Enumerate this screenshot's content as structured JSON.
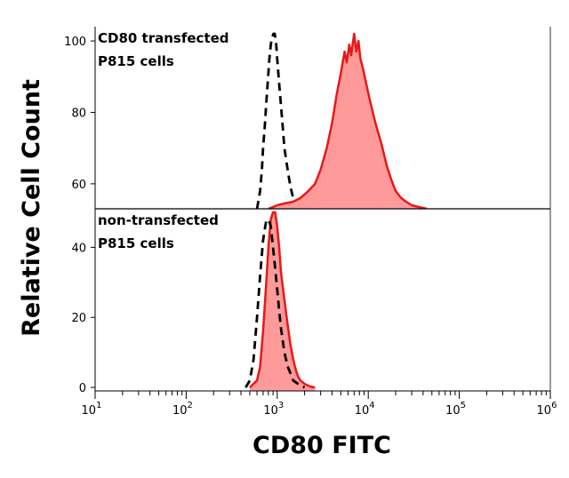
{
  "chart_data": {
    "type": "area",
    "xlabel": "CD80 FITC",
    "ylabel": "Relative Cell Count",
    "xscale": "log",
    "xlim": [
      10,
      1000000
    ],
    "x_ticks": [
      {
        "base": "10",
        "exp": "1",
        "value": 10
      },
      {
        "base": "10",
        "exp": "2",
        "value": 100
      },
      {
        "base": "10",
        "exp": "3",
        "value": 1000
      },
      {
        "base": "10",
        "exp": "4",
        "value": 10000
      },
      {
        "base": "10",
        "exp": "5",
        "value": 100000
      },
      {
        "base": "10",
        "exp": "6",
        "value": 1000000
      }
    ],
    "panels": [
      {
        "label_lines": [
          "CD80 transfected",
          "P815 cells"
        ],
        "ylim": [
          53,
          104
        ],
        "y_ticks": [
          60,
          80,
          100
        ],
        "series": [
          {
            "style": "dashed-black",
            "x": [
              600,
              620,
              650,
              680,
              700,
              730,
              760,
              790,
              820,
              850,
              880,
              910,
              940,
              970,
              1000,
              1050,
              1100,
              1150,
              1200,
              1300,
              1400,
              1500,
              1600,
              1700,
              1800,
              1900,
              2000
            ],
            "y": [
              53,
              55,
              58,
              64,
              70,
              76,
              83,
              89,
              95,
              99,
              101,
              102,
              102,
              100,
              95,
              88,
              82,
              76,
              70,
              64,
              59,
              56,
              55,
              54,
              53.5,
              53.2,
              53
            ]
          },
          {
            "style": "filled-red",
            "x": [
              800,
              1000,
              1200,
              1500,
              1800,
              2200,
              2600,
              3000,
              3500,
              4000,
              4500,
              5000,
              5500,
              5800,
              6200,
              6500,
              7000,
              7400,
              7800,
              8200,
              8800,
              9500,
              10500,
              12000,
              14000,
              16000,
              18000,
              20000,
              23000,
              26000,
              30000,
              36000,
              44000
            ],
            "y": [
              53,
              54,
              54.5,
              55,
              56,
              58,
              60,
              64,
              70,
              77,
              85,
              91,
              97,
              94,
              99,
              96,
              102,
              97,
              100,
              95,
              92,
              88,
              83,
              77,
              71,
              65,
              61,
              58,
              56,
              55,
              54,
              53.5,
              53
            ]
          }
        ]
      },
      {
        "label_lines": [
          "non-transfected",
          "P815 cells"
        ],
        "ylim": [
          -1,
          51
        ],
        "y_ticks": [
          0,
          20,
          40
        ],
        "series": [
          {
            "style": "filled-red",
            "x": [
              500,
              600,
              650,
              700,
              750,
              800,
              850,
              900,
              950,
              1000,
              1050,
              1100,
              1200,
              1300,
              1400,
              1500,
              1600,
              1700,
              1800,
              2000,
              2300,
              2600
            ],
            "y": [
              0,
              2,
              6,
              16,
              28,
              40,
              48,
              50,
              50,
              46,
              40,
              33,
              25,
              18,
              12,
              8,
              5,
              3,
              2,
              1,
              0.3,
              0
            ]
          },
          {
            "style": "dashed-black",
            "x": [
              450,
              500,
              550,
              600,
              650,
              700,
              750,
              800,
              850,
              900,
              950,
              1000,
              1050,
              1100,
              1200,
              1300,
              1400,
              1500,
              1700,
              2000
            ],
            "y": [
              0,
              2,
              8,
              20,
              32,
              42,
              47,
              48,
              46,
              40,
              34,
              28,
              22,
              17,
              10,
              6,
              4,
              2,
              1,
              0
            ]
          }
        ]
      }
    ],
    "colors": {
      "fill": "#ff9a9a",
      "line": "#e81818",
      "dashed": "#000000"
    }
  }
}
